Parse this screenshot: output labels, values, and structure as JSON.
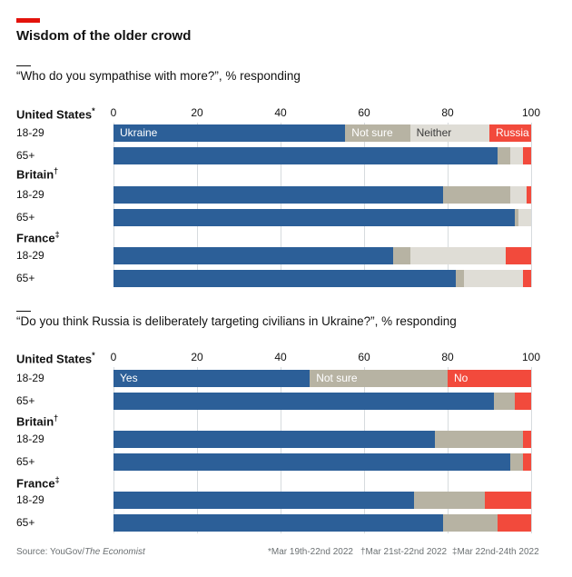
{
  "title": "Wisdom of the older crowd",
  "colors": {
    "ukraine": "#2c5f98",
    "not_sure": "#b7b3a3",
    "neither": "#dfddd6",
    "russia": "#f24a3c",
    "yes": "#2c5f98",
    "no": "#f24a3c"
  },
  "chart_data": [
    {
      "type": "bar",
      "orientation": "horizontal",
      "stacked": true,
      "title": "“Who do you sympathise with more?”, % responding",
      "xlim": [
        0,
        100
      ],
      "xticks": [
        "0",
        "20",
        "40",
        "60",
        "80",
        "100"
      ],
      "segment_labels": [
        "Ukraine",
        "Not sure",
        "Neither",
        "Russia"
      ],
      "groups": [
        {
          "country": "United States",
          "mark": "*",
          "rows": [
            {
              "age": "18-29",
              "values": [
                55.5,
                15.5,
                19,
                10
              ]
            },
            {
              "age": "65+",
              "values": [
                92,
                3,
                3,
                2
              ]
            }
          ]
        },
        {
          "country": "Britain",
          "mark": "†",
          "rows": [
            {
              "age": "18-29",
              "values": [
                79,
                16,
                4,
                1
              ]
            },
            {
              "age": "65+",
              "values": [
                96,
                1,
                3,
                0
              ]
            }
          ]
        },
        {
          "country": "France",
          "mark": "‡",
          "rows": [
            {
              "age": "18-29",
              "values": [
                67,
                4,
                23,
                6
              ]
            },
            {
              "age": "65+",
              "values": [
                82,
                2,
                14,
                2
              ]
            }
          ]
        }
      ]
    },
    {
      "type": "bar",
      "orientation": "horizontal",
      "stacked": true,
      "title": "“Do you think Russia is deliberately targeting civilians in Ukraine?”, % responding",
      "xlim": [
        0,
        100
      ],
      "xticks": [
        "0",
        "20",
        "40",
        "60",
        "80",
        "100"
      ],
      "segment_labels": [
        "Yes",
        "Not sure",
        "No"
      ],
      "groups": [
        {
          "country": "United States",
          "mark": "*",
          "rows": [
            {
              "age": "18-29",
              "values": [
                47,
                33,
                20
              ]
            },
            {
              "age": "65+",
              "values": [
                91,
                5,
                4
              ]
            }
          ]
        },
        {
          "country": "Britain",
          "mark": "†",
          "rows": [
            {
              "age": "18-29",
              "values": [
                77,
                21,
                2
              ]
            },
            {
              "age": "65+",
              "values": [
                95,
                3,
                2
              ]
            }
          ]
        },
        {
          "country": "France",
          "mark": "‡",
          "rows": [
            {
              "age": "18-29",
              "values": [
                72,
                17,
                11
              ]
            },
            {
              "age": "65+",
              "values": [
                79,
                13,
                8
              ]
            }
          ]
        }
      ]
    }
  ],
  "footer": {
    "source_prefix": "Source: YouGov/",
    "source_italic": "The Economist",
    "notes": [
      "*Mar 19th-22nd 2022",
      "†Mar 21st-22nd 2022",
      "‡Mar 22nd-24th 2022"
    ]
  }
}
